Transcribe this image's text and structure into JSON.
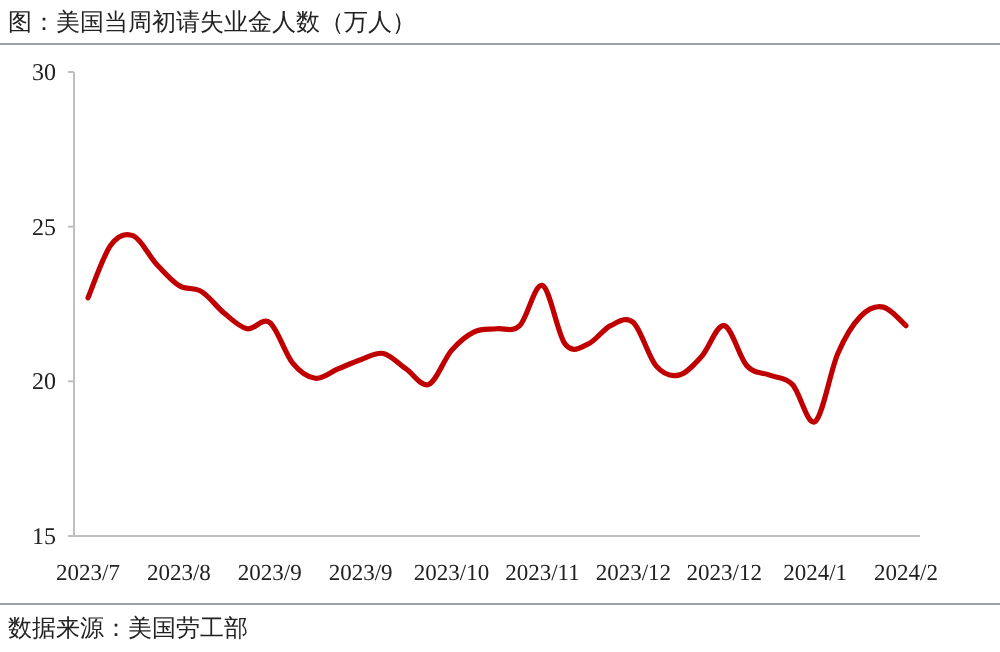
{
  "chart_data": {
    "type": "line",
    "title": "图：美国当周初请失业金人数（万人）",
    "categories": [
      "2023/7",
      null,
      null,
      null,
      "2023/8",
      null,
      null,
      null,
      "2023/9",
      null,
      null,
      null,
      "2023/9",
      null,
      null,
      null,
      "2023/10",
      null,
      null,
      null,
      "2023/11",
      null,
      null,
      null,
      "2023/12",
      null,
      null,
      null,
      "2023/12",
      null,
      null,
      null,
      "2024/1",
      null,
      null,
      null,
      "2024/2"
    ],
    "series": [
      {
        "color": "#c00000",
        "values": [
          22.7,
          24.4,
          24.7,
          23.8,
          23.1,
          22.9,
          22.2,
          21.7,
          21.9,
          20.6,
          20.1,
          20.4,
          20.7,
          20.9,
          20.4,
          19.9,
          21.0,
          21.6,
          21.7,
          21.8,
          23.1,
          21.2,
          21.2,
          21.8,
          21.9,
          20.5,
          20.2,
          20.8,
          21.8,
          20.5,
          20.2,
          19.9,
          18.7,
          20.9,
          22.1,
          22.4,
          21.8
        ]
      }
    ],
    "ylim": [
      15,
      30
    ],
    "yticks": [
      15,
      20,
      25,
      30
    ],
    "grid": false,
    "marker": "none",
    "line_style": "solid",
    "annotations": [
      "数据来源：美国劳工部"
    ]
  }
}
